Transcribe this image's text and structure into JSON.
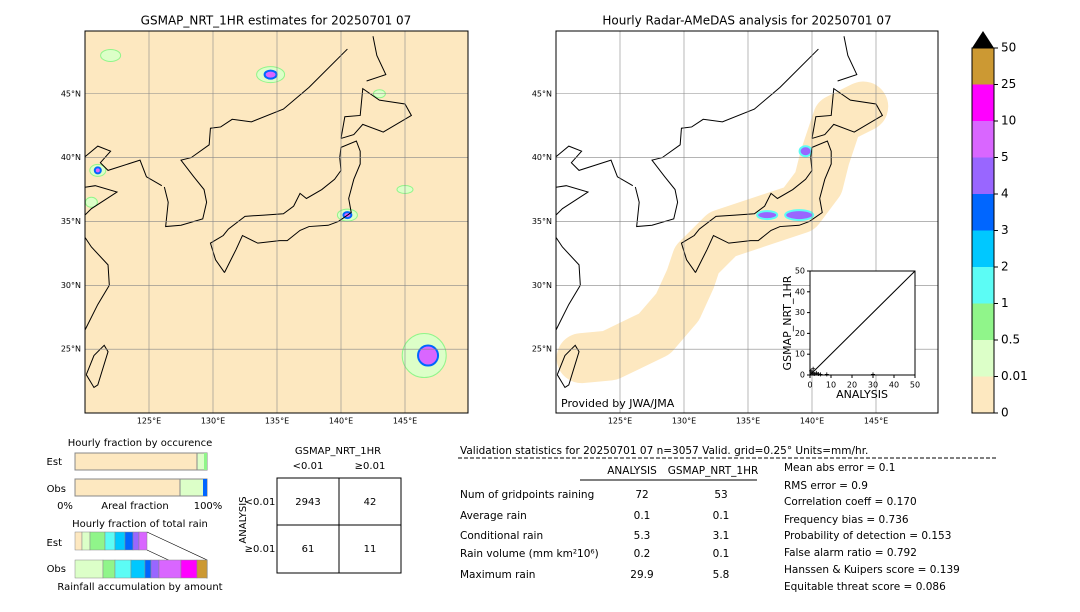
{
  "left_map": {
    "title": "GSMAP_NRT_1HR estimates for 20250701 07",
    "lonticks": [
      {
        "value": 125,
        "label": "125°E"
      },
      {
        "value": 130,
        "label": "130°E"
      },
      {
        "value": 135,
        "label": "135°E"
      },
      {
        "value": 140,
        "label": "140°E"
      },
      {
        "value": 145,
        "label": "145°E"
      }
    ],
    "latticks": [
      {
        "value": 25,
        "label": "25°N"
      },
      {
        "value": 30,
        "label": "30°N"
      },
      {
        "value": 35,
        "label": "35°N"
      },
      {
        "value": 40,
        "label": "40°N"
      },
      {
        "value": 45,
        "label": "45°N"
      }
    ]
  },
  "right_map": {
    "title": "Hourly Radar-AMeDAS analysis for 20250701 07",
    "credit": "Provided by JWA/JMA",
    "lonticks": [
      {
        "value": 125,
        "label": "125°E"
      },
      {
        "value": 130,
        "label": "130°E"
      },
      {
        "value": 135,
        "label": "135°E"
      },
      {
        "value": 140,
        "label": "140°E"
      },
      {
        "value": 145,
        "label": "145°E"
      }
    ],
    "latticks": [
      {
        "value": 25,
        "label": "25°N"
      },
      {
        "value": 30,
        "label": "30°N"
      },
      {
        "value": 35,
        "label": "35°N"
      },
      {
        "value": 40,
        "label": "40°N"
      },
      {
        "value": 45,
        "label": "45°N"
      }
    ]
  },
  "colorbar": {
    "ticks": [
      0,
      0.01,
      0.5,
      1,
      2,
      3,
      4,
      5,
      10,
      25,
      50
    ],
    "colors": [
      "#fde8c0",
      "#dcffc8",
      "#90f58a",
      "#5cfcf5",
      "#00c8ff",
      "#0066ff",
      "#9966ff",
      "#d966ff",
      "#ff00ff",
      "#cc9933"
    ],
    "over_color": "#000000"
  },
  "scatter": {
    "type": "scatter",
    "xlabel": "ANALYSIS",
    "ylabel": "GSMAP_NRT_1HR",
    "xlim": [
      0,
      50
    ],
    "ylim": [
      0,
      50
    ],
    "xticks": [
      0,
      10,
      20,
      30,
      40,
      50
    ],
    "yticks": [
      0,
      10,
      20,
      30,
      40,
      50
    ],
    "x": [
      0.5,
      1,
      1.5,
      2,
      3,
      4,
      5,
      8,
      30
    ],
    "y": [
      2,
      1,
      3,
      0.5,
      1,
      0.5,
      0.3,
      0.3,
      0.3
    ]
  },
  "fractions": {
    "occurrence_title": "Hourly fraction by occurence",
    "est": "Est",
    "obs": "Obs",
    "axis_left": "0%",
    "axis_mid": "Areal fraction",
    "axis_right": "100%",
    "rain_title": "Hourly fraction of total rain",
    "rain_est": "Est",
    "rain_obs": "Obs",
    "rain_axis": "Rainfall accumulation by amount"
  },
  "contingency": {
    "title": "GSMAP_NRT_1HR",
    "col_lt": "<0.01",
    "col_ge": "≥0.01",
    "row_title": "ANALYSIS",
    "row_lt": "<0.01",
    "row_ge": "≥0.01",
    "cells": [
      [
        "2943",
        "42"
      ],
      [
        "61",
        "11"
      ]
    ]
  },
  "validation": {
    "header": "Validation statistics for 20250701 07  n=3057 Valid. grid=0.25° Units=mm/hr.",
    "columns": [
      "ANALYSIS",
      "GSMAP_NRT_1HR"
    ],
    "rows": [
      [
        "Num of gridpoints raining",
        "72",
        "53"
      ],
      [
        "Average rain",
        "0.1",
        "0.1"
      ],
      [
        "Conditional rain",
        "5.3",
        "3.1"
      ],
      [
        "Rain volume (mm km²10⁶)",
        "0.2",
        "0.1"
      ],
      [
        "Maximum rain",
        "29.9",
        "5.8"
      ]
    ],
    "scores": [
      "Mean abs error =    0.1",
      "RMS error =    0.9",
      "Correlation coeff =  0.170",
      "Frequency bias =  0.736",
      "Probability of detection =  0.153",
      "False alarm ratio =  0.792",
      "Hanssen & Kuipers score =  0.139",
      "Equitable threat score =  0.086"
    ]
  }
}
